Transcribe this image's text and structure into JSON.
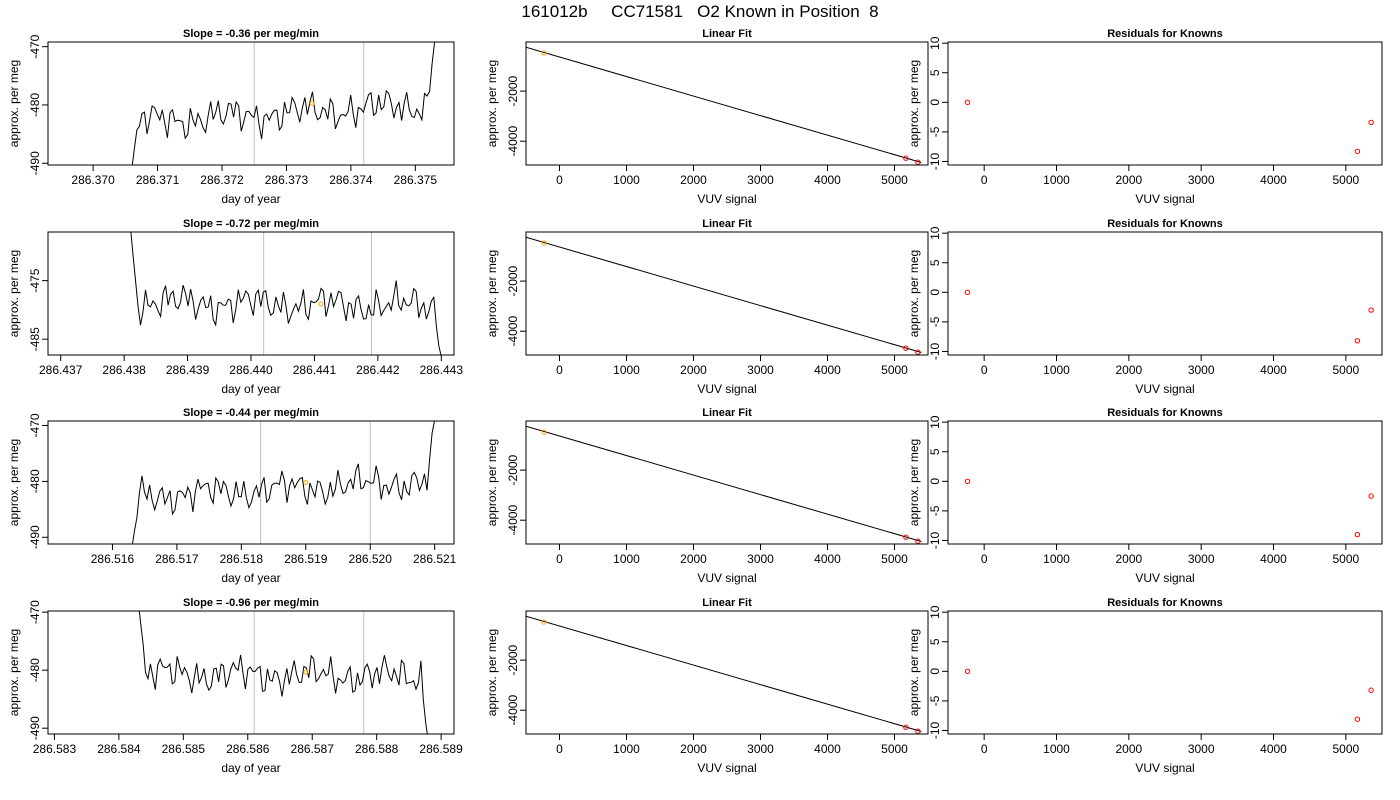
{
  "page": {
    "title": "161012b     CC71581   O2 Known in Position  8"
  },
  "colors": {
    "line": "#000000",
    "marker_orange": "#FFA500",
    "marker_red": "#FF0000",
    "vline": "#BEBEBE",
    "frame": "#000000"
  },
  "chart_data": [
    {
      "type": "line",
      "row": 0,
      "col": 0,
      "title": "Slope =  -0.36  per meg/min",
      "xlabel": "day of year",
      "ylabel": "approx. per meg",
      "xlim": [
        286.3693,
        286.3756
      ],
      "ylim": [
        -490.3,
        -469.2
      ],
      "xticks": [
        286.37,
        286.371,
        286.372,
        286.373,
        286.374,
        286.375
      ],
      "xtick_labels": [
        "286.370",
        "286.371",
        "286.372",
        "286.373",
        "286.374",
        "286.375"
      ],
      "yticks": [
        -490,
        -480,
        -470
      ],
      "ytick_labels": [
        "-490",
        "-480",
        "-470"
      ],
      "vlines": [
        286.3725,
        286.3742
      ],
      "series_start": 286.3706,
      "series_end": 286.3753,
      "series_n": 120,
      "series_base": -481.4,
      "series_trend": 3.0,
      "start_value": -491,
      "end_value": -469,
      "highlight_point": [
        286.3734,
        -479.7
      ]
    },
    {
      "type": "line",
      "row": 0,
      "col": 1,
      "title": "Linear Fit",
      "xlabel": "VUV signal",
      "ylabel": "approx. per meg",
      "xlim": [
        -500,
        5500
      ],
      "ylim": [
        -4950,
        -40
      ],
      "xticks": [
        0,
        1000,
        2000,
        3000,
        4000,
        5000
      ],
      "xtick_labels": [
        "0",
        "1000",
        "2000",
        "3000",
        "4000",
        "5000"
      ],
      "yticks": [
        -4000,
        -2000
      ],
      "ytick_labels": [
        "-4000",
        "-2000"
      ],
      "fit_line": [
        [
          -500,
          -250
        ],
        [
          5400,
          -4850
        ]
      ],
      "points": [
        [
          -230,
          -480
        ],
        [
          5170,
          -4680
        ],
        [
          5350,
          -4840
        ]
      ],
      "point_colors": [
        "orange",
        "red",
        "red"
      ]
    },
    {
      "type": "scatter",
      "row": 0,
      "col": 2,
      "title": "Residuals for Knowns",
      "xlabel": "VUV signal",
      "ylabel": "approx. per meg",
      "xlim": [
        -500,
        5500
      ],
      "ylim": [
        -10.6,
        10.2
      ],
      "xticks": [
        0,
        1000,
        2000,
        3000,
        4000,
        5000
      ],
      "xtick_labels": [
        "0",
        "1000",
        "2000",
        "3000",
        "4000",
        "5000"
      ],
      "yticks": [
        -10,
        -5,
        0,
        5,
        10
      ],
      "ytick_labels": [
        "-10",
        "-5",
        "0",
        "5",
        "10"
      ],
      "points": [
        [
          -230,
          0
        ],
        [
          5160,
          -8.3
        ],
        [
          5350,
          -3.4
        ]
      ]
    },
    {
      "type": "line",
      "row": 1,
      "col": 0,
      "title": "Slope =  -0.72  per meg/min",
      "xlabel": "day of year",
      "ylabel": "approx. per meg",
      "xlim": [
        286.4368,
        286.4432
      ],
      "ylim": [
        -487.7,
        -466.7
      ],
      "xticks": [
        286.437,
        286.438,
        286.439,
        286.44,
        286.441,
        286.442,
        286.443
      ],
      "xtick_labels": [
        "286.437",
        "286.438",
        "286.439",
        "286.440",
        "286.441",
        "286.442",
        "286.443"
      ],
      "yticks": [
        -485,
        -475
      ],
      "ytick_labels": [
        "-485",
        "-475"
      ],
      "vlines": [
        286.4402,
        286.4419
      ],
      "series_start": 286.4381,
      "series_end": 286.443,
      "series_n": 125,
      "series_base": -479.0,
      "series_trend": -0.6,
      "start_value": -466,
      "end_value": -488,
      "highlight_point": [
        286.4411,
        -479.0
      ]
    },
    {
      "type": "line",
      "row": 1,
      "col": 1,
      "title": "Linear Fit",
      "xlabel": "VUV signal",
      "ylabel": "approx. per meg",
      "xlim": [
        -500,
        5500
      ],
      "ylim": [
        -4950,
        -40
      ],
      "xticks": [
        0,
        1000,
        2000,
        3000,
        4000,
        5000
      ],
      "xtick_labels": [
        "0",
        "1000",
        "2000",
        "3000",
        "4000",
        "5000"
      ],
      "yticks": [
        -4000,
        -2000
      ],
      "ytick_labels": [
        "-4000",
        "-2000"
      ],
      "fit_line": [
        [
          -500,
          -250
        ],
        [
          5400,
          -4850
        ]
      ],
      "points": [
        [
          -230,
          -480
        ],
        [
          5170,
          -4680
        ],
        [
          5350,
          -4840
        ]
      ],
      "point_colors": [
        "orange",
        "red",
        "red"
      ]
    },
    {
      "type": "scatter",
      "row": 1,
      "col": 2,
      "title": "Residuals for Knowns",
      "xlabel": "VUV signal",
      "ylabel": "approx. per meg",
      "xlim": [
        -500,
        5500
      ],
      "ylim": [
        -10.6,
        10.2
      ],
      "xticks": [
        0,
        1000,
        2000,
        3000,
        4000,
        5000
      ],
      "xtick_labels": [
        "0",
        "1000",
        "2000",
        "3000",
        "4000",
        "5000"
      ],
      "yticks": [
        -10,
        -5,
        0,
        5,
        10
      ],
      "ytick_labels": [
        "-10",
        "-5",
        "0",
        "5",
        "10"
      ],
      "points": [
        [
          -230,
          0
        ],
        [
          5160,
          -8.2
        ],
        [
          5350,
          -3.0
        ]
      ]
    },
    {
      "type": "line",
      "row": 2,
      "col": 0,
      "title": "Slope =  -0.44  per meg/min",
      "xlabel": "day of year",
      "ylabel": "approx. per meg",
      "xlim": [
        286.515,
        286.5213
      ],
      "ylim": [
        -491.2,
        -469.2
      ],
      "xticks": [
        286.516,
        286.517,
        286.518,
        286.519,
        286.52,
        286.521
      ],
      "xtick_labels": [
        "286.516",
        "286.517",
        "286.518",
        "286.519",
        "286.520",
        "286.521"
      ],
      "yticks": [
        -490,
        -480,
        -470
      ],
      "ytick_labels": [
        "-490",
        "-480",
        "-470"
      ],
      "vlines": [
        286.5183,
        286.52
      ],
      "series_start": 286.5163,
      "series_end": 286.521,
      "series_n": 120,
      "series_base": -481.3,
      "series_trend": 2.8,
      "start_value": -492,
      "end_value": -469,
      "highlight_point": [
        286.519,
        -480.2
      ]
    },
    {
      "type": "line",
      "row": 2,
      "col": 1,
      "title": "Linear Fit",
      "xlabel": "VUV signal",
      "ylabel": "approx. per meg",
      "xlim": [
        -500,
        5500
      ],
      "ylim": [
        -4950,
        -40
      ],
      "xticks": [
        0,
        1000,
        2000,
        3000,
        4000,
        5000
      ],
      "xtick_labels": [
        "0",
        "1000",
        "2000",
        "3000",
        "4000",
        "5000"
      ],
      "yticks": [
        -4000,
        -2000
      ],
      "ytick_labels": [
        "-4000",
        "-2000"
      ],
      "fit_line": [
        [
          -500,
          -250
        ],
        [
          5400,
          -4850
        ]
      ],
      "points": [
        [
          -230,
          -480
        ],
        [
          5170,
          -4680
        ],
        [
          5350,
          -4840
        ]
      ],
      "point_colors": [
        "orange",
        "red",
        "red"
      ]
    },
    {
      "type": "scatter",
      "row": 2,
      "col": 2,
      "title": "Residuals for Knowns",
      "xlabel": "VUV signal",
      "ylabel": "approx. per meg",
      "xlim": [
        -500,
        5500
      ],
      "ylim": [
        -10.6,
        10.2
      ],
      "xticks": [
        0,
        1000,
        2000,
        3000,
        4000,
        5000
      ],
      "xtick_labels": [
        "0",
        "1000",
        "2000",
        "3000",
        "4000",
        "5000"
      ],
      "yticks": [
        -10,
        -5,
        0,
        5,
        10
      ],
      "ytick_labels": [
        "-10",
        "-5",
        "0",
        "5",
        "10"
      ],
      "points": [
        [
          -230,
          0
        ],
        [
          5160,
          -9.0
        ],
        [
          5350,
          -2.5
        ]
      ]
    },
    {
      "type": "line",
      "row": 3,
      "col": 0,
      "title": "Slope =  -0.96  per meg/min",
      "xlabel": "day of year",
      "ylabel": "approx. per meg",
      "xlim": [
        286.5829,
        286.5892
      ],
      "ylim": [
        -491.0,
        -469.8
      ],
      "xticks": [
        286.583,
        286.584,
        286.585,
        286.586,
        286.587,
        286.588,
        286.589
      ],
      "xtick_labels": [
        "286.583",
        "286.584",
        "286.585",
        "286.586",
        "286.587",
        "286.588",
        "286.589"
      ],
      "yticks": [
        -490,
        -480,
        -470
      ],
      "ytick_labels": [
        "-490",
        "-480",
        "-470"
      ],
      "vlines": [
        286.5861,
        286.5878
      ],
      "series_start": 286.5843,
      "series_end": 286.5888,
      "series_n": 120,
      "series_base": -480.8,
      "series_trend": -0.5,
      "start_value": -468,
      "end_value": -492,
      "highlight_point": [
        286.5869,
        -480.3
      ]
    },
    {
      "type": "line",
      "row": 3,
      "col": 1,
      "title": "Linear Fit",
      "xlabel": "VUV signal",
      "ylabel": "approx. per meg",
      "xlim": [
        -500,
        5500
      ],
      "ylim": [
        -4950,
        -40
      ],
      "xticks": [
        0,
        1000,
        2000,
        3000,
        4000,
        5000
      ],
      "xtick_labels": [
        "0",
        "1000",
        "2000",
        "3000",
        "4000",
        "5000"
      ],
      "yticks": [
        -4000,
        -2000
      ],
      "ytick_labels": [
        "-4000",
        "-2000"
      ],
      "fit_line": [
        [
          -500,
          -250
        ],
        [
          5400,
          -4850
        ]
      ],
      "points": [
        [
          -230,
          -480
        ],
        [
          5170,
          -4680
        ],
        [
          5350,
          -4840
        ]
      ],
      "point_colors": [
        "orange",
        "red",
        "red"
      ]
    },
    {
      "type": "scatter",
      "row": 3,
      "col": 2,
      "title": "Residuals for Knowns",
      "xlabel": "VUV signal",
      "ylabel": "approx. per meg",
      "xlim": [
        -500,
        5500
      ],
      "ylim": [
        -10.6,
        10.2
      ],
      "xticks": [
        0,
        1000,
        2000,
        3000,
        4000,
        5000
      ],
      "xtick_labels": [
        "0",
        "1000",
        "2000",
        "3000",
        "4000",
        "5000"
      ],
      "yticks": [
        -10,
        -5,
        0,
        5,
        10
      ],
      "ytick_labels": [
        "-10",
        "-5",
        "0",
        "5",
        "10"
      ],
      "points": [
        [
          -230,
          0
        ],
        [
          5160,
          -8.1
        ],
        [
          5350,
          -3.2
        ]
      ]
    }
  ]
}
